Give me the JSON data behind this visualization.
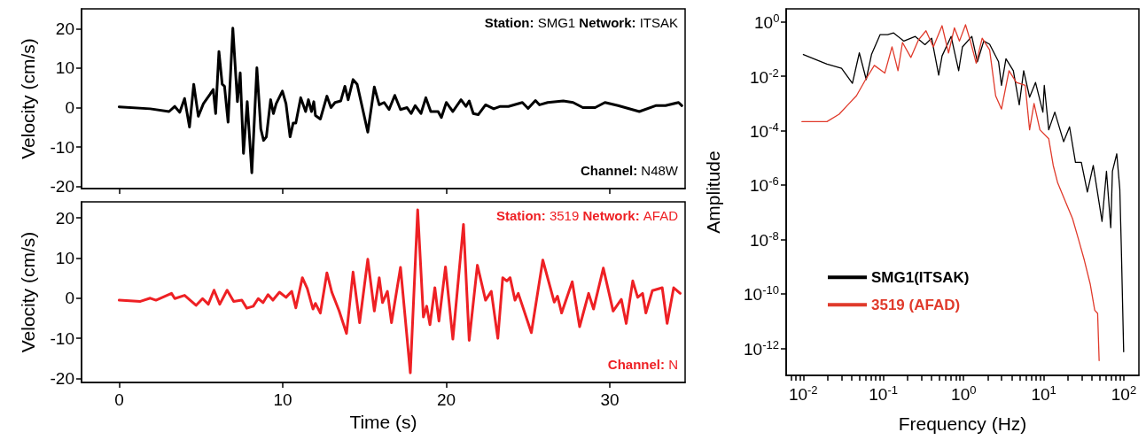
{
  "chart_data": [
    {
      "type": "line",
      "ylabel": "Velocity (cm/s)",
      "annotations": [
        "Station: SMG1 Network: ITSAK",
        "Channel: N48W"
      ],
      "xlim": [
        -2.3,
        34.6
      ],
      "xticks": [
        0,
        10,
        20,
        30
      ],
      "ylim": [
        -20.5,
        25
      ],
      "yticks": [
        -20,
        -10,
        0,
        10,
        20
      ],
      "tick_labels": "y",
      "grid": false,
      "legend": false,
      "marker": "none",
      "line_style": "solid",
      "series": [
        {
          "color": "#000000",
          "x": [
            0,
            1.9,
            3.05,
            3.4,
            3.7,
            4.0,
            4.3,
            4.56,
            4.84,
            5.15,
            5.56,
            5.75,
            5.9,
            6.1,
            6.3,
            6.44,
            6.66,
            6.95,
            7.23,
            7.4,
            7.6,
            7.83,
            8.11,
            8.42,
            8.66,
            8.83,
            9.0,
            9.26,
            9.43,
            9.6,
            9.98,
            10.2,
            10.45,
            10.64,
            10.8,
            11.1,
            11.4,
            11.57,
            11.76,
            11.9,
            12.0,
            12.3,
            12.7,
            12.95,
            13.2,
            13.55,
            13.8,
            14.0,
            14.3,
            14.55,
            15.2,
            15.6,
            15.9,
            16.2,
            16.5,
            16.85,
            17.2,
            17.6,
            17.85,
            18.1,
            18.45,
            18.75,
            19.05,
            19.5,
            19.7,
            20.0,
            20.4,
            20.9,
            21.2,
            21.4,
            21.65,
            21.95,
            22.4,
            22.9,
            23.3,
            23.8,
            24.65,
            25.0,
            25.45,
            25.7,
            26.2,
            27.15,
            27.75,
            28.35,
            29.1,
            29.7,
            30.5,
            31.8,
            32.8,
            33.4,
            34.2,
            34.4
          ],
          "values": [
            0.2,
            -0.3,
            -1,
            0.3,
            -1.2,
            2.3,
            -4.9,
            5.9,
            -2.2,
            1,
            3.4,
            4.6,
            -1.5,
            14.2,
            5.9,
            5.4,
            -3.7,
            20.1,
            1.5,
            8.8,
            -11.6,
            1.5,
            -16.5,
            10.1,
            -5.4,
            -8.3,
            -7.4,
            2,
            -1.5,
            1,
            4.2,
            1,
            -7.4,
            -3.9,
            -3.9,
            2.5,
            -1,
            2,
            -1,
            1.5,
            -2,
            -2.9,
            2.9,
            0,
            1.3,
            1.7,
            5.4,
            2,
            7.1,
            5.9,
            -6.2,
            5.2,
            0.7,
            1.3,
            -0.5,
            3.1,
            -0.5,
            0,
            -1.5,
            0.5,
            -1.5,
            2.5,
            -1,
            -1,
            -2.5,
            1.3,
            -1,
            2,
            0.3,
            1.7,
            -1.5,
            -1.8,
            0.7,
            -0.3,
            0.3,
            0.3,
            1.3,
            -0.2,
            1.8,
            0.7,
            1.3,
            1.7,
            1.3,
            0,
            0,
            1.3,
            0.5,
            -1,
            0.5,
            0.5,
            1.3,
            0.5
          ]
        }
      ]
    },
    {
      "type": "line",
      "xlabel": "Time (s)",
      "ylabel": "Velocity (cm/s)",
      "annotations": [
        "Station: 3519 Network: AFAD",
        "Channel: N"
      ],
      "xlim": [
        -2.3,
        34.6
      ],
      "xticks": [
        0,
        10,
        20,
        30
      ],
      "ylim": [
        -21,
        24
      ],
      "yticks": [
        -20,
        -10,
        0,
        10,
        20
      ],
      "grid": false,
      "legend": false,
      "marker": "none",
      "line_style": "solid",
      "series": [
        {
          "color": "#ee2024",
          "x": [
            0,
            1.3,
            1.9,
            2.25,
            3.2,
            3.4,
            4.0,
            4.7,
            5.1,
            5.45,
            5.8,
            6.15,
            6.6,
            7.0,
            7.5,
            7.8,
            8.2,
            8.5,
            8.8,
            9.1,
            9.4,
            9.8,
            10.2,
            10.55,
            10.8,
            11.2,
            11.5,
            11.85,
            12.0,
            12.3,
            12.7,
            13.0,
            13.45,
            13.9,
            14.3,
            14.7,
            15.2,
            15.6,
            15.9,
            16.1,
            16.4,
            16.65,
            17.2,
            17.8,
            18.25,
            18.6,
            18.8,
            19.0,
            19.3,
            19.55,
            19.95,
            20.4,
            21.05,
            21.4,
            21.9,
            22.4,
            22.75,
            23.15,
            23.45,
            23.7,
            23.9,
            24.2,
            24.4,
            25.2,
            25.9,
            26.6,
            26.8,
            27.05,
            27.7,
            28.15,
            28.7,
            29.0,
            29.6,
            30.2,
            30.7,
            31.0,
            31.4,
            31.7,
            32.0,
            32.2,
            32.6,
            33.2,
            33.5,
            33.9,
            34.3
          ],
          "values": [
            -0.5,
            -0.8,
            0,
            -0.5,
            1.2,
            -0.1,
            0.7,
            -1.8,
            -0.1,
            -1.5,
            2,
            -1.5,
            2,
            -0.8,
            -0.5,
            -2.5,
            -2,
            -0.1,
            -1.1,
            0.9,
            -0.5,
            1.5,
            0.2,
            1.7,
            -2.4,
            5.1,
            2.4,
            -2.7,
            -1.3,
            -3.7,
            6.3,
            1.5,
            -3.2,
            -8.8,
            6.5,
            -6.1,
            9.7,
            -3.2,
            5.1,
            -1.1,
            1.7,
            -6.1,
            7.7,
            -18.6,
            22,
            -4.7,
            -2,
            -6.6,
            2.6,
            -5.7,
            7.8,
            -10.2,
            18.4,
            -10.5,
            8.2,
            -0.5,
            1.7,
            -10,
            5.1,
            4.3,
            5.1,
            -0.5,
            1.2,
            -8.6,
            9.5,
            -1,
            0.5,
            -3.7,
            4.1,
            -7.1,
            1.2,
            -2.7,
            7.5,
            -3.2,
            -0.3,
            -6.3,
            4.3,
            0.2,
            1.2,
            -3.7,
            1.9,
            2.6,
            -6.3,
            2.6,
            1.2
          ]
        }
      ]
    },
    {
      "type": "line",
      "xlabel": "Frequency (Hz)",
      "ylabel": "Amplitude",
      "log": "xy",
      "xlim": [
        0.0061,
        155
      ],
      "ylim": [
        1e-13,
        3
      ],
      "xticks": [
        {
          "value": 0.01,
          "label": "10$^{-2}$"
        },
        {
          "value": 0.1,
          "label": "10$^{-1}$"
        },
        {
          "value": 1,
          "label": "10$^{0}$"
        },
        {
          "value": 10,
          "label": "10$^{1}$"
        },
        {
          "value": 100,
          "label": "10$^{2}$"
        },
        {
          "value": 0.007,
          "label": null
        },
        {
          "value": 0.008,
          "label": null
        },
        {
          "value": 0.009,
          "label": null
        },
        {
          "value": 0.02,
          "label": null
        },
        {
          "value": 0.03,
          "label": null
        },
        {
          "value": 0.04,
          "label": null
        },
        {
          "value": 0.05,
          "label": null
        },
        {
          "value": 0.06,
          "label": null
        },
        {
          "value": 0.07,
          "label": null
        },
        {
          "value": 0.08,
          "label": null
        },
        {
          "value": 0.09,
          "label": null
        },
        {
          "value": 0.2,
          "label": null
        },
        {
          "value": 0.3,
          "label": null
        },
        {
          "value": 0.4,
          "label": null
        },
        {
          "value": 0.5,
          "label": null
        },
        {
          "value": 0.6,
          "label": null
        },
        {
          "value": 0.7,
          "label": null
        },
        {
          "value": 0.8,
          "label": null
        },
        {
          "value": 0.9,
          "label": null
        },
        {
          "value": 2,
          "label": null
        },
        {
          "value": 3,
          "label": null
        },
        {
          "value": 4,
          "label": null
        },
        {
          "value": 5,
          "label": null
        },
        {
          "value": 6,
          "label": null
        },
        {
          "value": 7,
          "label": null
        },
        {
          "value": 8,
          "label": null
        },
        {
          "value": 9,
          "label": null
        },
        {
          "value": 20,
          "label": null
        },
        {
          "value": 30,
          "label": null
        },
        {
          "value": 40,
          "label": null
        },
        {
          "value": 50,
          "label": null
        },
        {
          "value": 60,
          "label": null
        },
        {
          "value": 70,
          "label": null
        },
        {
          "value": 80,
          "label": null
        },
        {
          "value": 90,
          "label": null
        }
      ],
      "yticks": [
        {
          "value": 1e-12,
          "label": "10$^{-12}$"
        },
        {
          "value": 1e-10,
          "label": "10$^{-10}$"
        },
        {
          "value": 1e-08,
          "label": "10$^{-8}$"
        },
        {
          "value": 1e-06,
          "label": "10$^{-6}$"
        },
        {
          "value": 0.0001,
          "label": "10$^{-4}$"
        },
        {
          "value": 0.01,
          "label": "10$^{-2}$"
        },
        {
          "value": 1,
          "label": "10$^{0}$"
        }
      ],
      "grid": false,
      "legend": "bottom left",
      "marker": "none",
      "line_style": "solid",
      "series": [
        {
          "name": "SMG1(ITSAK)",
          "color": "#000000",
          "x": [
            0.01,
            0.0197,
            0.03,
            0.041,
            0.05,
            0.061,
            0.071,
            0.091,
            0.113,
            0.134,
            0.18,
            0.25,
            0.33,
            0.4,
            0.49,
            0.54,
            0.7,
            0.87,
            0.97,
            1.27,
            1.49,
            1.79,
            2.12,
            2.74,
            2.98,
            3.39,
            4.19,
            4.97,
            5.64,
            6.69,
            7.93,
            9.8,
            10.2,
            11.6,
            13.8,
            17.8,
            21.1,
            25,
            29.6,
            35.2,
            41.7,
            53.7,
            61,
            69,
            72.4,
            82,
            89.5,
            93.3,
            100
          ],
          "values": [
            0.063,
            0.028,
            0.0195,
            0.0055,
            0.072,
            0.0076,
            0.063,
            0.34,
            0.34,
            0.39,
            0.196,
            0.29,
            0.145,
            0.25,
            0.011,
            0.056,
            0.29,
            0.016,
            0.12,
            0.29,
            0.034,
            0.196,
            0.15,
            0.034,
            0.0046,
            0.044,
            0.016,
            0.00089,
            0.016,
            0.0017,
            0.0059,
            0.00048,
            0.0046,
            0.000107,
            0.00048,
            3.9e-05,
            0.000138,
            6.8e-06,
            6.8e-06,
            5.5e-07,
            5.2e-06,
            4.6e-08,
            3.2e-06,
            2.7e-08,
            3.2e-06,
            1.4e-05,
            7.1e-07,
            6.3e-09,
            7.4e-13
          ]
        },
        {
          "name": "3519 (AFAD)",
          "color": "#e03a2b",
          "x": [
            0.0096,
            0.0197,
            0.028,
            0.036,
            0.046,
            0.06,
            0.077,
            0.104,
            0.128,
            0.152,
            0.173,
            0.22,
            0.275,
            0.34,
            0.42,
            0.54,
            0.65,
            0.77,
            0.89,
            1.06,
            1.22,
            1.44,
            1.71,
            2.12,
            2.52,
            2.98,
            3.7,
            4.57,
            5.9,
            6.69,
            7.6,
            9.0,
            11.6,
            13.2,
            15,
            18.6,
            23,
            27.3,
            32.3,
            38.2,
            43.5,
            47.3,
            49.4
          ],
          "values": [
            0.000214,
            0.000214,
            0.0004,
            0.00089,
            0.0019,
            0.0076,
            0.025,
            0.013,
            0.12,
            0.016,
            0.174,
            0.049,
            0.22,
            0.47,
            0.12,
            0.72,
            0.072,
            0.6,
            0.196,
            0.78,
            0.196,
            0.03,
            0.25,
            0.093,
            0.0019,
            0.00062,
            0.016,
            0.0059,
            0.0046,
            0.000107,
            0.001,
            0.000107,
            5e-05,
            5.2e-06,
            1.2e-06,
            2.6e-07,
            5.8e-08,
            1e-08,
            1.7e-09,
            2.3e-10,
            2.5e-11,
            1.9e-11,
            3.5e-13
          ]
        }
      ]
    }
  ]
}
